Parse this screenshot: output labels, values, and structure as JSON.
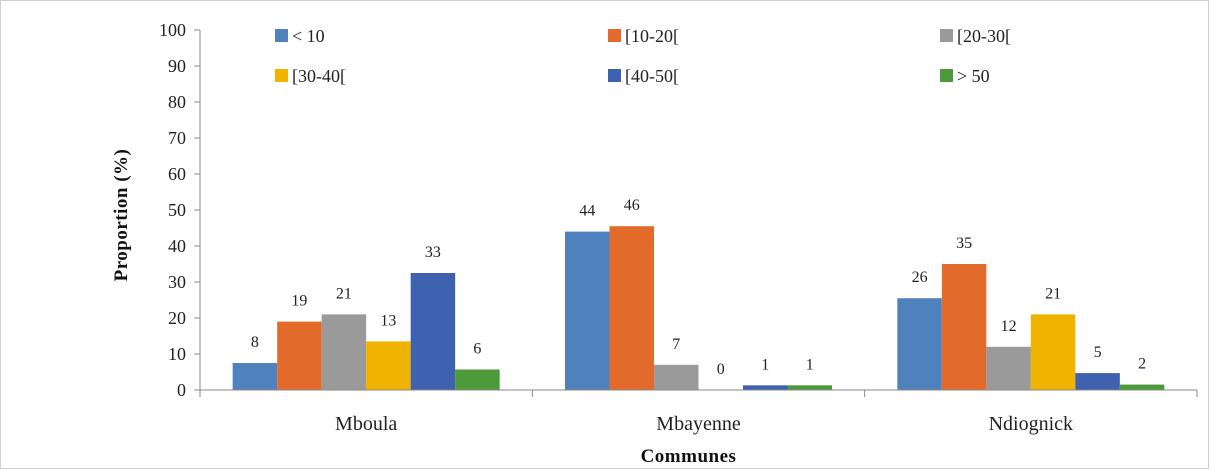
{
  "chart_data": {
    "type": "bar",
    "title": "",
    "xlabel": "Communes",
    "ylabel": "Proportion (%)",
    "ylim": [
      0,
      100
    ],
    "yticks": [
      0,
      10,
      20,
      30,
      40,
      50,
      60,
      70,
      80,
      90,
      100
    ],
    "grid": false,
    "legend_position": "top",
    "categories": [
      "Mboula",
      "Mbayenne",
      "Ndiognick"
    ],
    "series": [
      {
        "name": "< 10",
        "color": "#4f81bd",
        "values": [
          8,
          44,
          26
        ],
        "plotted": [
          7.5,
          44,
          25.5
        ]
      },
      {
        "name": "[10-20[",
        "color": "#e26b2b",
        "values": [
          19,
          46,
          35
        ],
        "plotted": [
          19,
          45.5,
          35
        ]
      },
      {
        "name": "[20-30[",
        "color": "#9a9a9a",
        "values": [
          21,
          7,
          12
        ],
        "plotted": [
          21,
          7,
          12
        ]
      },
      {
        "name": "[30-40[",
        "color": "#f0b400",
        "values": [
          13,
          0,
          21
        ],
        "plotted": [
          13.5,
          0,
          21
        ]
      },
      {
        "name": "[40-50[",
        "color": "#3f62b0",
        "values": [
          33,
          1,
          5
        ],
        "plotted": [
          32.5,
          1.3,
          4.7
        ]
      },
      {
        "name": "> 50",
        "color": "#4c9a3a",
        "values": [
          6,
          1,
          2
        ],
        "plotted": [
          5.7,
          1.3,
          1.5
        ]
      }
    ]
  }
}
